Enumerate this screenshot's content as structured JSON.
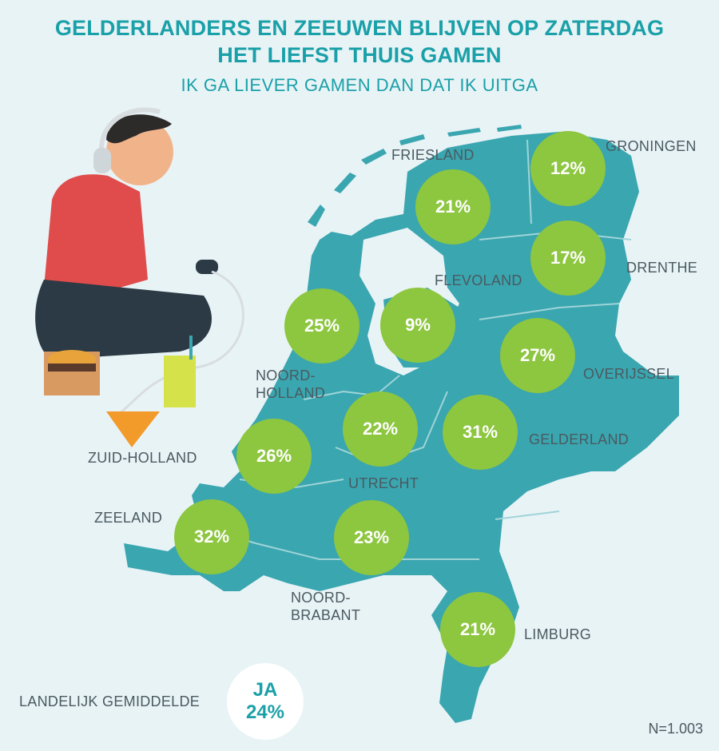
{
  "title_line1": "GELDERLANDERS EN ZEEUWEN BLIJVEN OP ZATERDAG",
  "title_line2": "HET LIEFST THUIS GAMEN",
  "subtitle": "IK GA LIEVER GAMEN DAN DAT IK UITGA",
  "colors": {
    "map": "#3aa6b0",
    "bubble": "#8dc63f",
    "title": "#1aa0a8",
    "background": "#e8f3f6"
  },
  "provinces": {
    "friesland": {
      "name": "FRIESLAND",
      "value": "21%"
    },
    "groningen": {
      "name": "GRONINGEN",
      "value": "12%"
    },
    "drenthe": {
      "name": "DRENTHE",
      "value": "17%"
    },
    "flevoland": {
      "name": "FLEVOLAND",
      "value": "9%"
    },
    "noord_holland": {
      "name_line1": "NOORD-",
      "name_line2": "HOLLAND",
      "value": "25%"
    },
    "overijssel": {
      "name": "OVERIJSSEL",
      "value": "27%"
    },
    "gelderland": {
      "name": "GELDERLAND",
      "value": "31%"
    },
    "utrecht": {
      "name": "UTRECHT",
      "value": "22%"
    },
    "zuid_holland": {
      "name": "ZUID-HOLLAND",
      "value": "26%"
    },
    "zeeland": {
      "name": "ZEELAND",
      "value": "32%"
    },
    "noord_brabant": {
      "name_line1": "NOORD-",
      "name_line2": "BRABANT",
      "value": "23%"
    },
    "limburg": {
      "name": "LIMBURG",
      "value": "21%"
    }
  },
  "national_average": {
    "label": "LANDELIJK GEMIDDELDE",
    "answer": "JA",
    "value": "24%"
  },
  "sample_size": "N=1.003"
}
